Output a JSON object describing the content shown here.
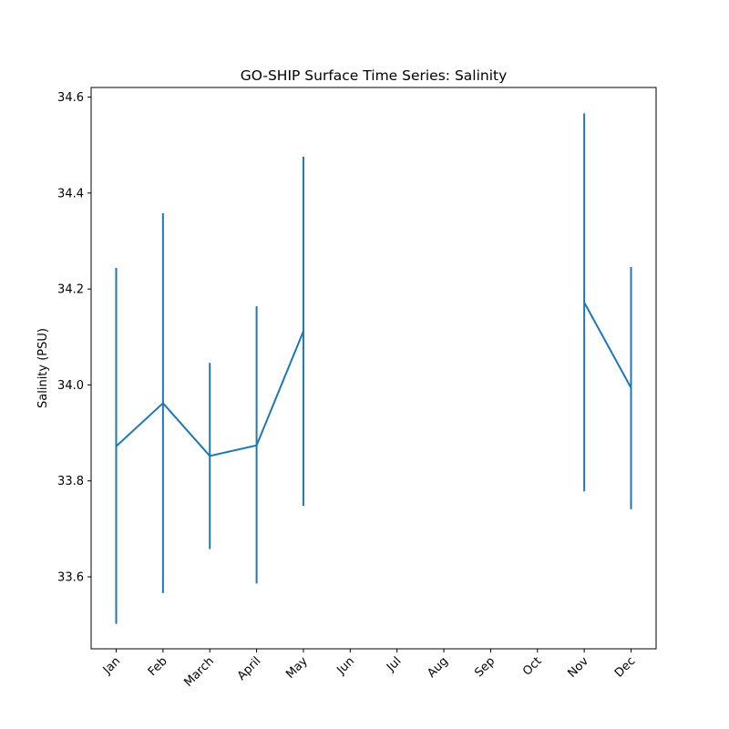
{
  "chart_data": {
    "type": "line",
    "title": "GO-SHIP Surface Time Series: Salinity",
    "xlabel": "",
    "ylabel": "Salinity (PSU)",
    "categories": [
      "Jan",
      "Feb",
      "March",
      "April",
      "May",
      "Jun",
      "Jul",
      "Aug",
      "Sep",
      "Oct",
      "Nov",
      "Dec"
    ],
    "ylim": [
      33.45,
      34.62
    ],
    "yticks": [
      33.6,
      33.8,
      34.0,
      34.2,
      34.4,
      34.6
    ],
    "ytick_labels": [
      "33.6",
      "33.8",
      "34.0",
      "34.2",
      "34.4",
      "34.6"
    ],
    "grid": false,
    "series": [
      {
        "values": [
          33.872,
          33.962,
          33.852,
          33.874,
          34.112,
          null,
          null,
          null,
          null,
          null,
          34.172,
          33.994
        ],
        "error_low": [
          33.502,
          33.566,
          33.658,
          33.586,
          33.748,
          null,
          null,
          null,
          null,
          null,
          33.778,
          33.741
        ],
        "error_high": [
          34.244,
          34.358,
          34.046,
          34.164,
          34.476,
          null,
          null,
          null,
          null,
          null,
          34.566,
          34.246
        ],
        "color": "#1f77b4"
      }
    ]
  }
}
